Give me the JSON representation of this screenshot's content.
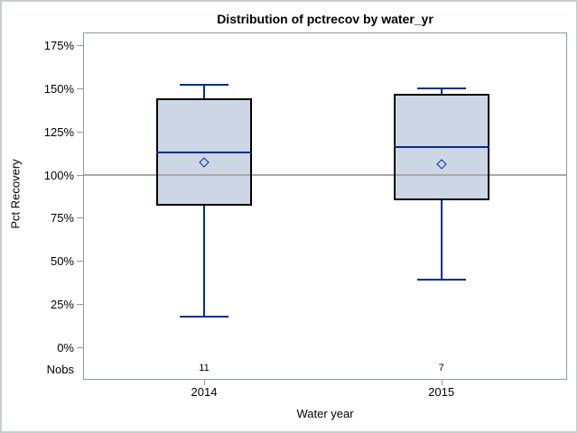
{
  "chart_data": {
    "type": "boxplot",
    "title": "Distribution of pctrecov by water_yr",
    "xlabel": "Water year",
    "ylabel": "Pct Recovery",
    "nobs_label": "Nobs",
    "ylim": [
      0,
      175
    ],
    "yticks": [
      {
        "value": 175,
        "label": "175%"
      },
      {
        "value": 150,
        "label": "150%"
      },
      {
        "value": 125,
        "label": "125%"
      },
      {
        "value": 100,
        "label": "100%"
      },
      {
        "value": 75,
        "label": "75%"
      },
      {
        "value": 50,
        "label": "50%"
      },
      {
        "value": 25,
        "label": "25%"
      },
      {
        "value": 0,
        "label": "0%"
      }
    ],
    "reference_line": 100,
    "categories": [
      "2014",
      "2015"
    ],
    "groups": [
      {
        "category": "2014",
        "nobs": "11",
        "min": 18,
        "q1": 82,
        "median": 113,
        "q3": 144,
        "max": 152,
        "mean": 107
      },
      {
        "category": "2015",
        "nobs": "7",
        "min": 39,
        "q1": 85,
        "median": 116,
        "q3": 147,
        "max": 150,
        "mean": 106
      }
    ],
    "legend": null,
    "grid": false,
    "colors": {
      "box_fill": "#cdd6e5",
      "box_border": "#000000",
      "line": "#002d96",
      "reference_line": "#a8a8a8",
      "frame": "#8f989f",
      "text": "#000000"
    }
  }
}
